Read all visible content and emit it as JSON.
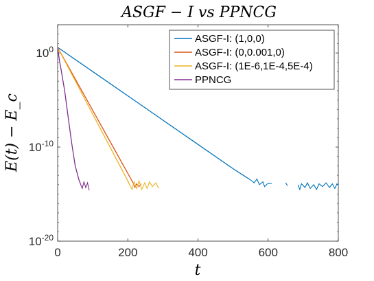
{
  "chart_data": {
    "type": "line",
    "title": "ASGF − I vs PPNCG",
    "xlabel": "t",
    "ylabel": "E(t) − E_c",
    "xlim": [
      0,
      800
    ],
    "ylim_log10": [
      -20,
      3
    ],
    "y_scale": "log",
    "x_ticks": [
      0,
      200,
      400,
      600,
      800
    ],
    "y_ticks": [
      {
        "exp": 0,
        "base": "10",
        "sup": "0"
      },
      {
        "exp": -10,
        "base": "10",
        "sup": "-10"
      },
      {
        "exp": -20,
        "base": "10",
        "sup": "-20"
      }
    ],
    "grid": false,
    "legend_position": "top-right",
    "series": [
      {
        "name": "ASGF-I: (1,0,0)",
        "color": "#0072BD",
        "points": [
          [
            0,
            0.6
          ],
          [
            100,
            -1.98
          ],
          [
            200,
            -4.56
          ],
          [
            300,
            -7.14
          ],
          [
            400,
            -9.72
          ],
          [
            500,
            -12.3
          ],
          [
            550,
            -13.5
          ]
        ],
        "noise": [
          [
            550,
            -13.5
          ],
          [
            560,
            -13.8
          ],
          [
            568,
            -13.4
          ],
          [
            575,
            -14.0
          ],
          [
            585,
            -13.7
          ],
          [
            590,
            -14.2
          ],
          [
            598,
            -13.9
          ],
          [
            610,
            -13.85
          ],
          [
            650,
            -13.8
          ],
          [
            655,
            -14.1
          ],
          [
            685,
            -14.0
          ],
          [
            690,
            -14.5
          ],
          [
            695,
            -13.9
          ],
          [
            705,
            -14.3
          ],
          [
            712,
            -13.8
          ],
          [
            720,
            -14.4
          ],
          [
            730,
            -14.0
          ],
          [
            738,
            -14.5
          ],
          [
            745,
            -13.9
          ],
          [
            755,
            -14.2
          ],
          [
            765,
            -13.8
          ],
          [
            775,
            -14.3
          ],
          [
            783,
            -13.9
          ],
          [
            790,
            -14.4
          ],
          [
            796,
            -13.9
          ],
          [
            800,
            -14.0
          ]
        ]
      },
      {
        "name": "ASGF-I: (0,0.001,0)",
        "color": "#D95319",
        "points": [
          [
            0,
            0.6
          ],
          [
            50,
            -2.75
          ],
          [
            100,
            -6.1
          ],
          [
            150,
            -9.45
          ],
          [
            200,
            -12.8
          ],
          [
            215,
            -13.8
          ]
        ],
        "noise": [
          [
            215,
            -13.8
          ],
          [
            220,
            -14.3
          ],
          [
            225,
            -13.9
          ],
          [
            232,
            -14.2
          ],
          [
            238,
            -13.9
          ]
        ]
      },
      {
        "name": "ASGF-I: (1E-6,1E-4,5E-4)",
        "color": "#EDB120",
        "points": [
          [
            0,
            0.6
          ],
          [
            50,
            -2.95
          ],
          [
            100,
            -6.5
          ],
          [
            150,
            -10.05
          ],
          [
            200,
            -13.6
          ],
          [
            205,
            -14.0
          ]
        ],
        "noise": [
          [
            205,
            -14.0
          ],
          [
            212,
            -14.5
          ],
          [
            218,
            -13.7
          ],
          [
            225,
            -14.4
          ],
          [
            232,
            -13.6
          ],
          [
            240,
            -14.5
          ],
          [
            248,
            -13.8
          ],
          [
            255,
            -14.4
          ],
          [
            262,
            -13.7
          ],
          [
            270,
            -14.2
          ],
          [
            280,
            -13.8
          ],
          [
            288,
            -14.4
          ]
        ]
      },
      {
        "name": "PPNCG",
        "color": "#7E2F8E",
        "points": [
          [
            0,
            0.6
          ],
          [
            5,
            -0.8
          ],
          [
            10,
            -1.8
          ],
          [
            20,
            -4.0
          ],
          [
            30,
            -6.8
          ],
          [
            40,
            -9.6
          ],
          [
            50,
            -12.0
          ],
          [
            60,
            -13.4
          ],
          [
            65,
            -13.9
          ]
        ],
        "noise": [
          [
            65,
            -13.9
          ],
          [
            70,
            -14.4
          ],
          [
            75,
            -13.7
          ],
          [
            80,
            -14.3
          ],
          [
            85,
            -13.8
          ],
          [
            90,
            -14.6
          ]
        ]
      }
    ]
  }
}
